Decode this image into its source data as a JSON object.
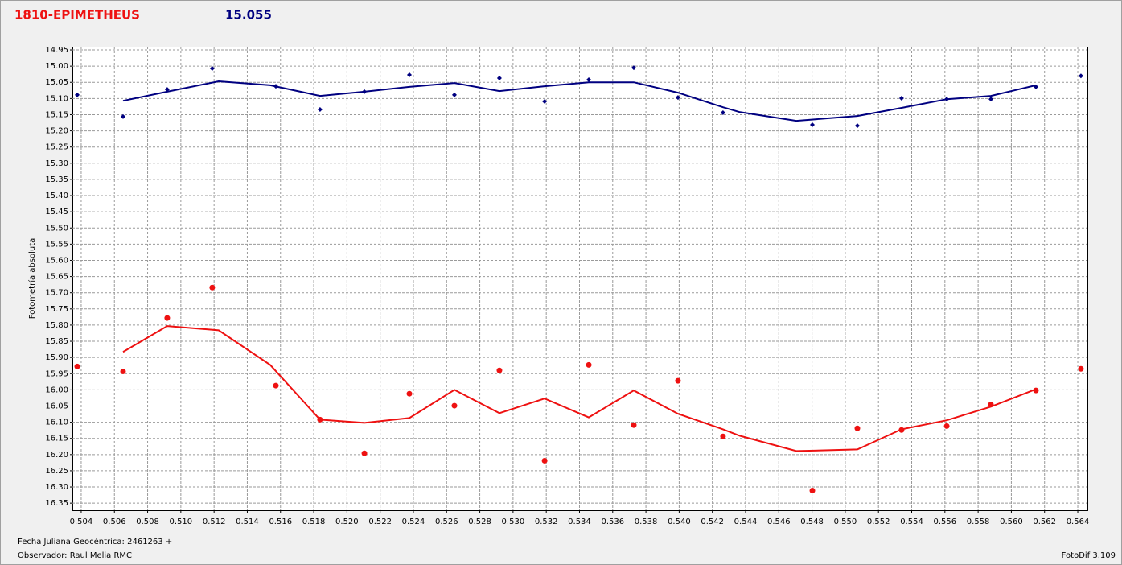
{
  "chart_data": {
    "type": "scatter",
    "title": "1810-EPIMETHEUS",
    "subtitle": "15.055",
    "y_label": "Fotometría absoluta",
    "footer_date": "Fecha Juliana Geocéntrica: 2461263 +",
    "footer_observer": "Observador: Raul Melia RMC",
    "software": "FotoDif 3.109",
    "xlim": [
      0.50347,
      0.56458
    ],
    "ylim": [
      14.94,
      16.372
    ],
    "y_inverted": true,
    "grid": true,
    "xticks": [
      0.504,
      0.506,
      0.508,
      {
        "value": 0.51,
        "label": "0.510"
      },
      0.512,
      0.514,
      0.516,
      0.518,
      {
        "value": 0.52,
        "label": "0.520"
      },
      0.522,
      0.524,
      0.526,
      0.528,
      {
        "value": 0.53,
        "label": "0.530"
      },
      0.532,
      0.534,
      0.536,
      0.538,
      {
        "value": 0.54,
        "label": "0.540"
      },
      0.542,
      0.544,
      0.546,
      0.548,
      {
        "value": 0.55,
        "label": "0.550"
      },
      0.552,
      0.554,
      0.556,
      0.558,
      {
        "value": 0.56,
        "label": "0.560"
      },
      0.562,
      0.564
    ],
    "yticks": [
      14.95,
      {
        "value": 15,
        "label": "15.00"
      },
      15.05,
      {
        "value": 15.1,
        "label": "15.10"
      },
      15.15,
      {
        "value": 15.2,
        "label": "15.20"
      },
      15.25,
      {
        "value": 15.3,
        "label": "15.30"
      },
      15.35,
      {
        "value": 15.4,
        "label": "15.40"
      },
      15.45,
      {
        "value": 15.5,
        "label": "15.50"
      },
      15.55,
      {
        "value": 15.6,
        "label": "15.60"
      },
      15.65,
      {
        "value": 15.7,
        "label": "15.70"
      },
      15.75,
      {
        "value": 15.8,
        "label": "15.80"
      },
      15.85,
      {
        "value": 15.9,
        "label": "15.90"
      },
      15.95,
      {
        "value": 16,
        "label": "16.00"
      },
      16.05,
      {
        "value": 16.1,
        "label": "16.10"
      },
      16.15,
      {
        "value": 16.2,
        "label": "16.20"
      },
      16.25,
      {
        "value": 16.3,
        "label": "16.30"
      },
      16.35
    ],
    "series": [
      {
        "mode": "markers",
        "marker": "diamond",
        "color": "#000080",
        "x": [
          0.50376,
          0.50652,
          0.50918,
          0.51189,
          0.51572,
          0.51838,
          0.52105,
          0.52376,
          0.52647,
          0.52918,
          0.5319,
          0.53456,
          0.53727,
          0.53993,
          0.54264,
          0.54802,
          0.55073,
          0.55339,
          0.55611,
          0.55877,
          0.56148,
          0.56419
        ],
        "values": [
          15.089,
          15.156,
          15.072,
          15.007,
          15.062,
          15.134,
          15.079,
          15.027,
          15.089,
          15.037,
          15.109,
          15.042,
          15.005,
          15.097,
          15.144,
          15.181,
          15.184,
          15.099,
          15.102,
          15.102,
          15.064,
          15.03
        ]
      },
      {
        "mode": "markers",
        "marker": "circle",
        "color": "#ee1111",
        "x": [
          0.50376,
          0.50652,
          0.50918,
          0.51189,
          0.51572,
          0.51838,
          0.52105,
          0.52376,
          0.52647,
          0.52918,
          0.5319,
          0.53456,
          0.53727,
          0.53993,
          0.54264,
          0.54802,
          0.55073,
          0.55339,
          0.55611,
          0.55877,
          0.56148,
          0.56419
        ],
        "values": [
          15.928,
          15.943,
          15.778,
          15.684,
          15.987,
          16.092,
          16.196,
          16.012,
          16.049,
          15.94,
          16.219,
          15.923,
          16.109,
          15.972,
          16.144,
          16.311,
          16.119,
          16.124,
          16.112,
          16.045,
          16.002,
          15.935
        ]
      },
      {
        "mode": "line",
        "color": "#000080",
        "x": [
          0.50652,
          0.50918,
          0.51228,
          0.51538,
          0.51838,
          0.52105,
          0.52376,
          0.52647,
          0.52918,
          0.5319,
          0.53456,
          0.53727,
          0.53993,
          0.54264,
          0.54366,
          0.54705,
          0.55073,
          0.55339,
          0.55611,
          0.55877,
          0.56148
        ],
        "values": [
          15.107,
          15.079,
          15.047,
          15.059,
          15.092,
          15.079,
          15.064,
          15.052,
          15.077,
          15.062,
          15.05,
          15.05,
          15.082,
          15.127,
          15.142,
          15.169,
          15.154,
          15.129,
          15.102,
          15.092,
          15.059
        ]
      },
      {
        "mode": "line",
        "color": "#ee1111",
        "x": [
          0.50652,
          0.50918,
          0.51228,
          0.51538,
          0.51838,
          0.52105,
          0.52376,
          0.52647,
          0.52918,
          0.5319,
          0.53456,
          0.53727,
          0.53993,
          0.54264,
          0.54366,
          0.54705,
          0.55073,
          0.55339,
          0.55611,
          0.55877,
          0.56148
        ],
        "values": [
          15.883,
          15.803,
          15.816,
          15.923,
          16.092,
          16.102,
          16.087,
          16.0,
          16.072,
          16.027,
          16.085,
          16.002,
          16.074,
          16.122,
          16.142,
          16.189,
          16.184,
          16.122,
          16.094,
          16.052,
          15.998
        ]
      }
    ]
  }
}
